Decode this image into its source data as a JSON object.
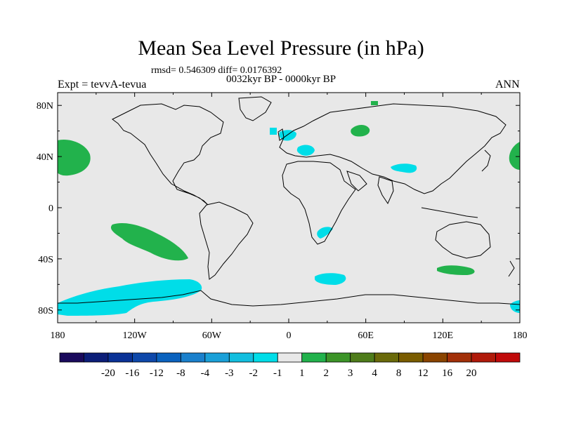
{
  "title": "Mean Sea Level Pressure (in hPa)",
  "stats": "rmsd= 0.546309 diff= 0.0176392",
  "period": "0032kyr BP - 0000kyr BP",
  "experiment": "Expt = tevvA-tevua",
  "season": "ANN",
  "colors": {
    "background_map": "#e8e8e8",
    "coastline": "#000000",
    "positive_anomaly": "#22b24c",
    "negative_anomaly": "#00dde8"
  },
  "map_data": {
    "lat_ticks": [
      {
        "value": 80,
        "label": "80N"
      },
      {
        "value": 40,
        "label": "40N"
      },
      {
        "value": 0,
        "label": "0"
      },
      {
        "value": -40,
        "label": "40S"
      },
      {
        "value": -80,
        "label": "80S"
      }
    ],
    "lon_ticks": [
      {
        "value": -180,
        "label": "180"
      },
      {
        "value": -120,
        "label": "120W"
      },
      {
        "value": -60,
        "label": "60W"
      },
      {
        "value": 0,
        "label": "0"
      },
      {
        "value": 60,
        "label": "60E"
      },
      {
        "value": 120,
        "label": "120E"
      },
      {
        "value": 180,
        "label": "180"
      }
    ],
    "lon_range": [
      -180,
      180
    ],
    "lat_range": [
      -90,
      90
    ]
  },
  "colorbar": {
    "colors": [
      "#1a0a5c",
      "#0c1e78",
      "#0a3296",
      "#0e48aa",
      "#0a62be",
      "#1a80cc",
      "#1aa0d8",
      "#12bedf",
      "#00dde8",
      "#e8e8e8",
      "#22b24c",
      "#3c9428",
      "#4e7c1a",
      "#6a6a0a",
      "#7a5c00",
      "#8a4400",
      "#a23008",
      "#b01a0a",
      "#c00a0a"
    ],
    "labels": [
      "-20",
      "-16",
      "-12",
      "-8",
      "-4",
      "-3",
      "-2",
      "-1",
      "1",
      "2",
      "3",
      "4",
      "8",
      "12",
      "16",
      "20"
    ]
  }
}
